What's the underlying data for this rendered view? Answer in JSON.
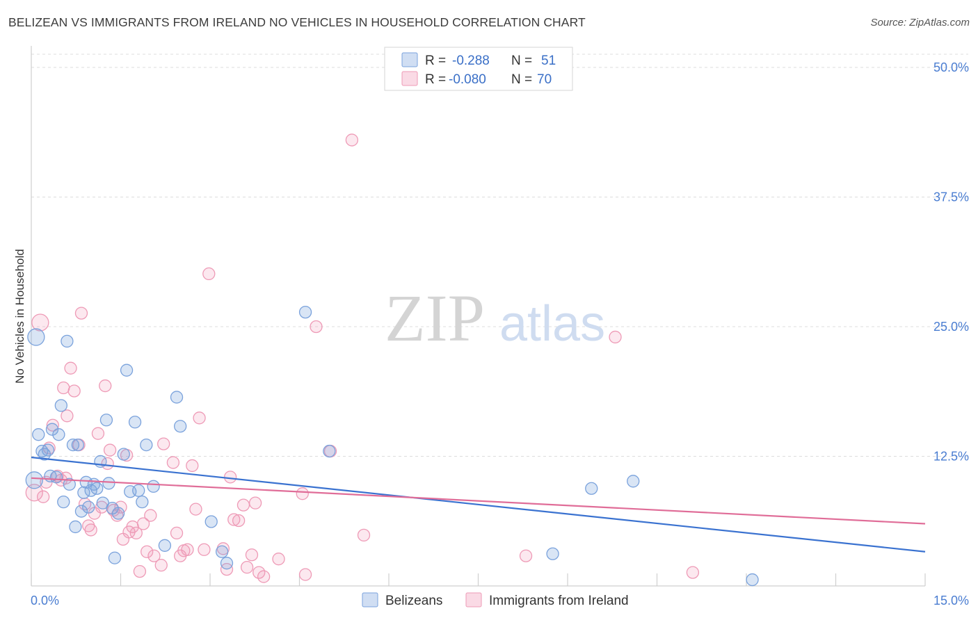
{
  "header": {
    "title": "BELIZEAN VS IMMIGRANTS FROM IRELAND NO VEHICLES IN HOUSEHOLD CORRELATION CHART",
    "source": "Source: ZipAtlas.com"
  },
  "watermark": {
    "zip": "ZIP",
    "atlas": "atlas"
  },
  "chart_data": {
    "type": "scatter",
    "title": "BELIZEAN VS IMMIGRANTS FROM IRELAND NO VEHICLES IN HOUSEHOLD CORRELATION CHART",
    "xlabel": "",
    "ylabel": "No Vehicles in Household",
    "xlim": [
      0,
      15
    ],
    "ylim": [
      0,
      52
    ],
    "x_tick_labels": [
      "0.0%",
      "15.0%"
    ],
    "y_ticks": [
      12.5,
      25.0,
      37.5,
      50.0
    ],
    "y_tick_labels": [
      "12.5%",
      "25.0%",
      "37.5%",
      "50.0%"
    ],
    "grid": true,
    "legend_position": "top-center",
    "colors": {
      "blue": "#7aa2dc",
      "pink": "#ee9ab6",
      "blue_line": "#3a72d0",
      "pink_line": "#e06d98"
    },
    "legend": [
      {
        "swatch": "blue",
        "r_label": "R =",
        "r_value": "-0.288",
        "n_label": "N =",
        "n_value": "51"
      },
      {
        "swatch": "pink",
        "r_label": "R =",
        "r_value": "-0.080",
        "n_label": "N =",
        "n_value": "70"
      }
    ],
    "series": [
      {
        "name": "Belizeans",
        "color": "#7aa2dc",
        "trend": {
          "x": [
            0,
            15
          ],
          "y": [
            12.4,
            3.3
          ]
        },
        "points": [
          {
            "x": 0.05,
            "y": 10.2,
            "big": true
          },
          {
            "x": 0.08,
            "y": 24.0,
            "big": true
          },
          {
            "x": 0.12,
            "y": 14.6
          },
          {
            "x": 0.18,
            "y": 13.0
          },
          {
            "x": 0.22,
            "y": 12.7
          },
          {
            "x": 0.28,
            "y": 13.1
          },
          {
            "x": 0.32,
            "y": 10.6
          },
          {
            "x": 0.35,
            "y": 15.1
          },
          {
            "x": 0.42,
            "y": 10.5
          },
          {
            "x": 0.46,
            "y": 14.6
          },
          {
            "x": 0.5,
            "y": 17.4
          },
          {
            "x": 0.54,
            "y": 8.1
          },
          {
            "x": 0.6,
            "y": 23.6
          },
          {
            "x": 0.64,
            "y": 9.8
          },
          {
            "x": 0.7,
            "y": 13.6
          },
          {
            "x": 0.74,
            "y": 5.7
          },
          {
            "x": 0.78,
            "y": 13.6
          },
          {
            "x": 0.84,
            "y": 7.2
          },
          {
            "x": 0.88,
            "y": 9.0
          },
          {
            "x": 0.92,
            "y": 10.0
          },
          {
            "x": 0.96,
            "y": 7.6
          },
          {
            "x": 1.0,
            "y": 9.2
          },
          {
            "x": 1.05,
            "y": 9.8
          },
          {
            "x": 1.1,
            "y": 9.4
          },
          {
            "x": 1.16,
            "y": 12.0
          },
          {
            "x": 1.2,
            "y": 8.0
          },
          {
            "x": 1.26,
            "y": 16.0
          },
          {
            "x": 1.3,
            "y": 9.9
          },
          {
            "x": 1.36,
            "y": 7.5
          },
          {
            "x": 1.4,
            "y": 2.7
          },
          {
            "x": 1.46,
            "y": 7.0
          },
          {
            "x": 1.55,
            "y": 12.7
          },
          {
            "x": 1.6,
            "y": 20.8
          },
          {
            "x": 1.66,
            "y": 9.1
          },
          {
            "x": 1.74,
            "y": 15.8
          },
          {
            "x": 1.8,
            "y": 9.2
          },
          {
            "x": 1.86,
            "y": 8.1
          },
          {
            "x": 1.93,
            "y": 13.6
          },
          {
            "x": 2.05,
            "y": 9.6
          },
          {
            "x": 2.24,
            "y": 3.9
          },
          {
            "x": 2.44,
            "y": 18.2
          },
          {
            "x": 2.5,
            "y": 15.4
          },
          {
            "x": 3.02,
            "y": 6.2
          },
          {
            "x": 3.2,
            "y": 3.3
          },
          {
            "x": 3.28,
            "y": 2.2
          },
          {
            "x": 4.6,
            "y": 26.4
          },
          {
            "x": 5.0,
            "y": 13.0
          },
          {
            "x": 8.75,
            "y": 3.1
          },
          {
            "x": 9.4,
            "y": 9.4
          },
          {
            "x": 10.1,
            "y": 10.1
          },
          {
            "x": 12.1,
            "y": 0.6
          }
        ]
      },
      {
        "name": "Immigrants from Ireland",
        "color": "#ee9ab6",
        "trend": {
          "x": [
            0,
            15
          ],
          "y": [
            10.4,
            6.0
          ]
        },
        "points": [
          {
            "x": 0.05,
            "y": 9.0,
            "big": true
          },
          {
            "x": 0.15,
            "y": 25.4,
            "big": true
          },
          {
            "x": 0.2,
            "y": 8.6
          },
          {
            "x": 0.25,
            "y": 10.0
          },
          {
            "x": 0.3,
            "y": 13.3
          },
          {
            "x": 0.36,
            "y": 15.5
          },
          {
            "x": 0.44,
            "y": 10.6
          },
          {
            "x": 0.5,
            "y": 10.2
          },
          {
            "x": 0.54,
            "y": 19.1
          },
          {
            "x": 0.6,
            "y": 16.4
          },
          {
            "x": 0.66,
            "y": 21.0
          },
          {
            "x": 0.72,
            "y": 18.8
          },
          {
            "x": 0.8,
            "y": 13.6
          },
          {
            "x": 0.84,
            "y": 26.3
          },
          {
            "x": 0.9,
            "y": 7.9
          },
          {
            "x": 0.96,
            "y": 5.8
          },
          {
            "x": 1.0,
            "y": 5.4
          },
          {
            "x": 1.06,
            "y": 7.0
          },
          {
            "x": 1.12,
            "y": 14.7
          },
          {
            "x": 1.18,
            "y": 7.6
          },
          {
            "x": 1.24,
            "y": 19.3
          },
          {
            "x": 1.28,
            "y": 11.8
          },
          {
            "x": 1.32,
            "y": 13.1
          },
          {
            "x": 1.38,
            "y": 7.3
          },
          {
            "x": 1.44,
            "y": 6.8
          },
          {
            "x": 1.5,
            "y": 7.6
          },
          {
            "x": 1.54,
            "y": 4.5
          },
          {
            "x": 1.6,
            "y": 12.6
          },
          {
            "x": 1.64,
            "y": 5.2
          },
          {
            "x": 1.7,
            "y": 5.7
          },
          {
            "x": 1.76,
            "y": 5.1
          },
          {
            "x": 1.82,
            "y": 1.4
          },
          {
            "x": 1.88,
            "y": 6.0
          },
          {
            "x": 1.94,
            "y": 3.3
          },
          {
            "x": 2.0,
            "y": 6.8
          },
          {
            "x": 2.06,
            "y": 2.9
          },
          {
            "x": 2.18,
            "y": 2.0
          },
          {
            "x": 2.22,
            "y": 13.7
          },
          {
            "x": 2.38,
            "y": 11.9
          },
          {
            "x": 2.44,
            "y": 5.1
          },
          {
            "x": 2.5,
            "y": 2.9
          },
          {
            "x": 2.56,
            "y": 3.4
          },
          {
            "x": 2.62,
            "y": 3.5
          },
          {
            "x": 2.7,
            "y": 11.6
          },
          {
            "x": 2.76,
            "y": 7.4
          },
          {
            "x": 2.82,
            "y": 16.2
          },
          {
            "x": 2.9,
            "y": 3.5
          },
          {
            "x": 2.98,
            "y": 30.1
          },
          {
            "x": 3.22,
            "y": 3.6
          },
          {
            "x": 3.28,
            "y": 1.6
          },
          {
            "x": 3.34,
            "y": 10.5
          },
          {
            "x": 3.4,
            "y": 6.4
          },
          {
            "x": 3.48,
            "y": 6.3
          },
          {
            "x": 3.56,
            "y": 7.8
          },
          {
            "x": 3.62,
            "y": 1.8
          },
          {
            "x": 3.7,
            "y": 3.0
          },
          {
            "x": 3.76,
            "y": 8.0
          },
          {
            "x": 3.82,
            "y": 1.3
          },
          {
            "x": 3.9,
            "y": 0.9
          },
          {
            "x": 4.15,
            "y": 2.6
          },
          {
            "x": 4.55,
            "y": 8.9
          },
          {
            "x": 4.6,
            "y": 1.1
          },
          {
            "x": 4.78,
            "y": 25.0
          },
          {
            "x": 5.02,
            "y": 13.0
          },
          {
            "x": 5.38,
            "y": 43.0
          },
          {
            "x": 5.58,
            "y": 4.9
          },
          {
            "x": 8.3,
            "y": 2.9
          },
          {
            "x": 9.8,
            "y": 24.0
          },
          {
            "x": 11.1,
            "y": 1.3
          },
          {
            "x": 0.58,
            "y": 10.4
          }
        ]
      }
    ]
  },
  "bottom_legend": [
    {
      "label": "Belizeans",
      "swatch": "blue"
    },
    {
      "label": "Immigrants from Ireland",
      "swatch": "pink"
    }
  ]
}
